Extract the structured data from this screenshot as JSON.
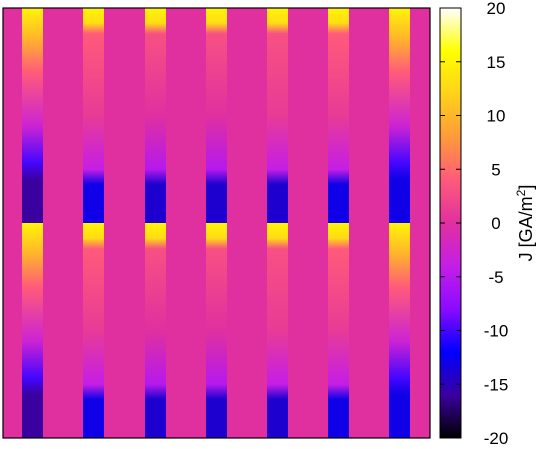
{
  "chart_data": {
    "type": "heatmap",
    "title": "",
    "xlabel": "",
    "ylabel": "",
    "colorbar": {
      "label": "J [GA/m",
      "label_superscript": "2",
      "label_suffix": "]",
      "range": [
        -20,
        20
      ],
      "ticks": [
        "20",
        "15",
        "10",
        "5",
        "0",
        "-5",
        "-10",
        "-15",
        "-20"
      ],
      "colormap": [
        "#000000",
        "#3a00a0",
        "#0000ff",
        "#8a0bff",
        "#c51ee6",
        "#e0309f",
        "#ff5a7a",
        "#ff9a3a",
        "#ffd21a",
        "#ffff00",
        "#ffffff"
      ]
    },
    "background_value": 0,
    "periods": 2,
    "stripes": [
      {
        "name": "stripe-1",
        "profile": [
          [
            0,
            15
          ],
          [
            0.14,
            10
          ],
          [
            0.3,
            4
          ],
          [
            0.55,
            -3
          ],
          [
            0.72,
            -10
          ],
          [
            0.8,
            -16
          ],
          [
            0.95,
            -16
          ]
        ]
      },
      {
        "name": "stripe-2",
        "profile": [
          [
            0,
            15
          ],
          [
            0.07,
            13
          ],
          [
            0.12,
            4
          ],
          [
            0.5,
            1
          ],
          [
            0.75,
            -4
          ],
          [
            0.82,
            -13
          ],
          [
            0.95,
            -13
          ]
        ]
      },
      {
        "name": "stripe-3",
        "profile": [
          [
            0,
            15
          ],
          [
            0.07,
            13
          ],
          [
            0.12,
            3
          ],
          [
            0.5,
            0
          ],
          [
            0.75,
            -5
          ],
          [
            0.82,
            -14
          ],
          [
            0.95,
            -14
          ]
        ]
      },
      {
        "name": "stripe-4",
        "profile": [
          [
            0,
            15
          ],
          [
            0.07,
            13
          ],
          [
            0.12,
            3
          ],
          [
            0.5,
            0
          ],
          [
            0.75,
            -5
          ],
          [
            0.82,
            -14
          ],
          [
            0.95,
            -14
          ]
        ]
      },
      {
        "name": "stripe-5",
        "profile": [
          [
            0,
            15
          ],
          [
            0.07,
            13
          ],
          [
            0.12,
            3
          ],
          [
            0.5,
            1
          ],
          [
            0.75,
            -4
          ],
          [
            0.82,
            -14
          ],
          [
            0.95,
            -14
          ]
        ]
      },
      {
        "name": "stripe-6",
        "profile": [
          [
            0,
            15
          ],
          [
            0.07,
            13
          ],
          [
            0.12,
            4
          ],
          [
            0.5,
            1
          ],
          [
            0.75,
            -4
          ],
          [
            0.82,
            -13
          ],
          [
            0.95,
            -13
          ]
        ]
      },
      {
        "name": "stripe-7",
        "profile": [
          [
            0,
            15
          ],
          [
            0.14,
            10
          ],
          [
            0.3,
            4
          ],
          [
            0.55,
            -3
          ],
          [
            0.72,
            -10
          ],
          [
            0.8,
            -13
          ],
          [
            0.95,
            -13
          ]
        ]
      }
    ]
  }
}
